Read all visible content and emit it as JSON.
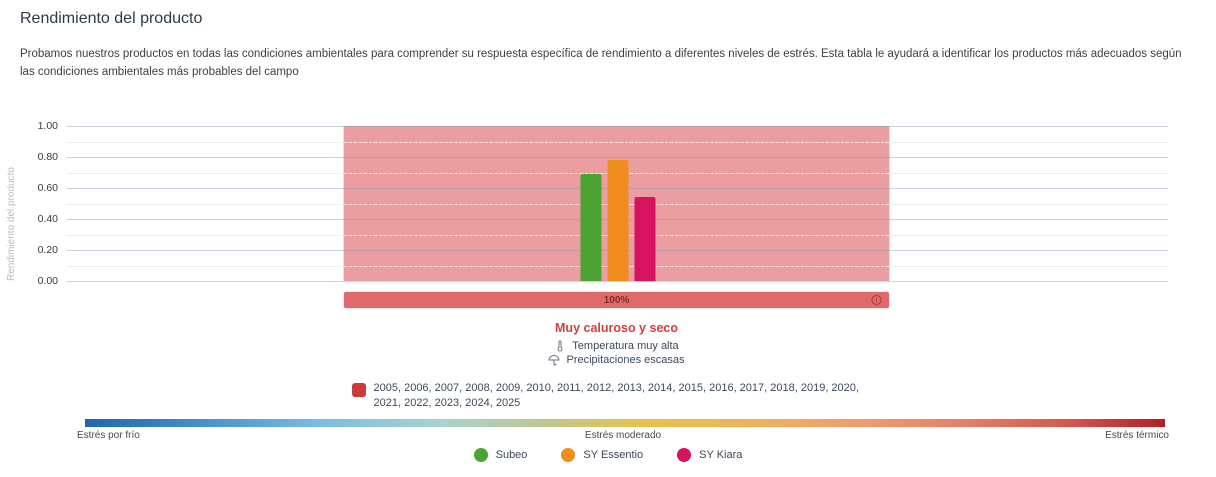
{
  "page": {
    "title": "Rendimiento del producto",
    "description": "Probamos nuestros productos en todas las condiciones ambientales para comprender su respuesta específica de rendimiento a diferentes niveles de estrés. Esta tabla le ayudará a identificar los productos más adecuados según las condiciones ambientales más probables del campo"
  },
  "chart_data": {
    "type": "bar",
    "title": "",
    "ylabel": "Rendimiento del producto",
    "ylim": [
      0,
      1
    ],
    "ytick_step": 0.2,
    "grid": "on",
    "series": [
      {
        "name": "Subeo",
        "value": 0.69,
        "color": "#4ba331"
      },
      {
        "name": "SY Essentio",
        "value": 0.78,
        "color": "#f18c1f"
      },
      {
        "name": "SY Kiara",
        "value": 0.54,
        "color": "#d6135f"
      }
    ],
    "stress_region": {
      "fill": "rgba(217,79,84,0.55)",
      "frequency_label": "100%",
      "condition": "Muy caluroso y seco"
    }
  },
  "condition": {
    "percent_label": "100%",
    "name": "Muy caluroso y seco",
    "details": [
      {
        "icon": "thermometer-icon",
        "text": "Temperatura muy alta"
      },
      {
        "icon": "rain-icon",
        "text": "Precipitaciones escasas"
      }
    ],
    "years": "2005, 2006, 2007, 2008, 2009, 2010, 2011, 2012, 2013, 2014, 2015, 2016, 2017, 2018, 2019, 2020, 2021, 2022, 2023, 2024, 2025",
    "years_swatch_color": "#cc3b3b"
  },
  "stress_scale": {
    "left_label": "Estrés por frío",
    "center_label": "Estrés moderado",
    "right_label": "Estrés térmico"
  }
}
